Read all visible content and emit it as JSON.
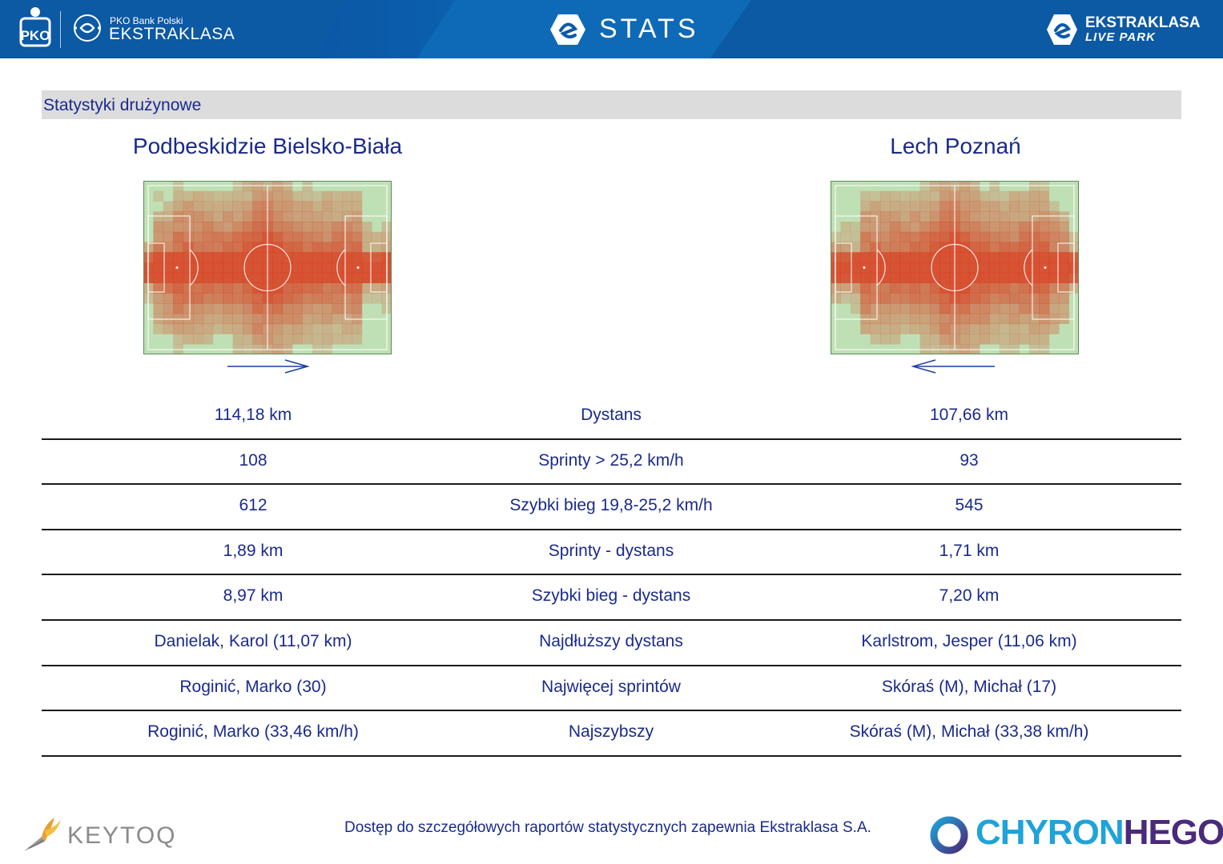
{
  "header": {
    "bank_line": "PKO Bank Polski",
    "league_name": "EKSTRAKLASA",
    "stats_title": "STATS",
    "live_line1": "EKSTRAKLASA",
    "live_line2": "LIVE PARK"
  },
  "section": {
    "title": "Statystyki drużynowe"
  },
  "teams": {
    "home": {
      "name": "Podbeskidzie Bielsko-Biała",
      "attack_direction": "right"
    },
    "away": {
      "name": "Lech Poznań",
      "attack_direction": "left"
    }
  },
  "stats": [
    {
      "label": "Dystans",
      "home": "114,18 km",
      "away": "107,66 km"
    },
    {
      "label": "Sprinty > 25,2 km/h",
      "home": "108",
      "away": "93"
    },
    {
      "label": "Szybki bieg 19,8-25,2 km/h",
      "home": "612",
      "away": "545"
    },
    {
      "label": "Sprinty - dystans",
      "home": "1,89 km",
      "away": "1,71 km"
    },
    {
      "label": "Szybki bieg - dystans",
      "home": "8,97 km",
      "away": "7,20 km"
    },
    {
      "label": "Najdłuższy dystans",
      "home": "Danielak, Karol (11,07 km)",
      "away": "Karlstrom, Jesper (11,06 km)"
    },
    {
      "label": "Najwięcej sprintów",
      "home": "Roginić, Marko (30)",
      "away": "Skóraś (M), Michał (17)"
    },
    {
      "label": "Najszybszy",
      "home": "Roginić, Marko (33,46 km/h)",
      "away": "Skóraś (M), Michał (33,38 km/h)"
    }
  ],
  "footer": {
    "keytoq": "KEYTOQ",
    "note": "Dostęp do szczegółowych raportów statystycznych zapewnia Ekstraklasa S.A.",
    "chyron_a": "CHYRON",
    "chyron_b": "HEGO"
  },
  "colors": {
    "header_blue": "#0b5aa8",
    "text_blue": "#1a2a8c",
    "pitch_green": "#bfe0b4",
    "heat_red": "#d93a1c",
    "section_gray": "#dcdcdc"
  },
  "icons": [
    "pko-logo-icon",
    "ekstraklasa-emblem-icon",
    "stats-emblem-icon",
    "live-park-emblem-icon",
    "keytoq-bird-icon",
    "chyronhego-ring-icon"
  ]
}
